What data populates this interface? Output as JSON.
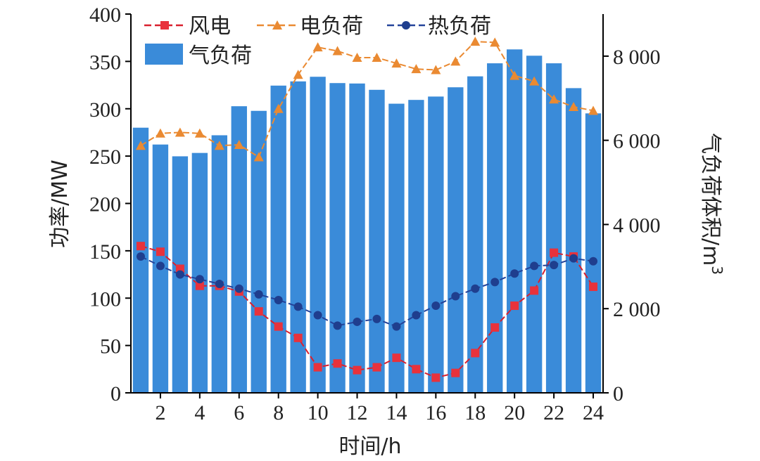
{
  "chart_data": {
    "type": "bar+line",
    "xlabel": "时间/h",
    "ylabel_left": "功率/MW",
    "ylabel_right": "气负荷体积/m",
    "ylabel_right_sup": "3",
    "ylim_left": [
      0,
      400
    ],
    "ylim_right": [
      0,
      9000
    ],
    "yticks_left": [
      0,
      50,
      100,
      150,
      200,
      250,
      300,
      350,
      400
    ],
    "yticks_right": [
      0,
      2000,
      4000,
      6000,
      8000
    ],
    "yticks_right_labels": [
      "0",
      "2 000",
      "4 000",
      "6 000",
      "8 000"
    ],
    "xticks": [
      2,
      4,
      6,
      8,
      10,
      12,
      14,
      16,
      18,
      20,
      22,
      24
    ],
    "x": [
      1,
      2,
      3,
      4,
      5,
      6,
      7,
      8,
      9,
      10,
      11,
      12,
      13,
      14,
      15,
      16,
      17,
      18,
      19,
      20,
      21,
      22,
      23,
      24
    ],
    "bars": {
      "name": "气负荷",
      "axis": "right",
      "color": "#3a8bd9",
      "values": [
        6300,
        5900,
        5620,
        5700,
        6120,
        6810,
        6700,
        7300,
        7400,
        7510,
        7360,
        7350,
        7200,
        6870,
        6960,
        7040,
        7260,
        7520,
        7830,
        8160,
        8010,
        7830,
        7240,
        6640
      ]
    },
    "series": [
      {
        "name": "风电",
        "axis": "left",
        "color": "#e8323c",
        "line_color": "#d9202e",
        "marker": "square",
        "values": [
          155,
          149,
          131,
          113,
          113,
          107,
          86,
          70,
          58,
          27,
          31,
          24,
          27,
          37,
          25,
          16,
          21,
          42,
          69,
          92,
          108,
          148,
          144,
          112
        ]
      },
      {
        "name": "电负荷",
        "axis": "left",
        "color": "#ea8a32",
        "line_color": "#ea8a32",
        "marker": "triangle",
        "values": [
          261,
          274,
          275,
          274,
          261,
          262,
          249,
          300,
          336,
          365,
          361,
          354,
          354,
          348,
          342,
          341,
          350,
          371,
          370,
          335,
          329,
          310,
          302,
          298
        ]
      },
      {
        "name": "热负荷",
        "axis": "left",
        "color": "#1f3e8e",
        "line_color": "#24439a",
        "marker": "circle",
        "values": [
          144,
          134,
          125,
          120,
          115,
          110,
          104,
          98,
          91,
          82,
          71,
          75,
          78,
          70,
          82,
          92,
          102,
          110,
          117,
          126,
          134,
          135,
          142,
          139
        ]
      }
    ]
  }
}
